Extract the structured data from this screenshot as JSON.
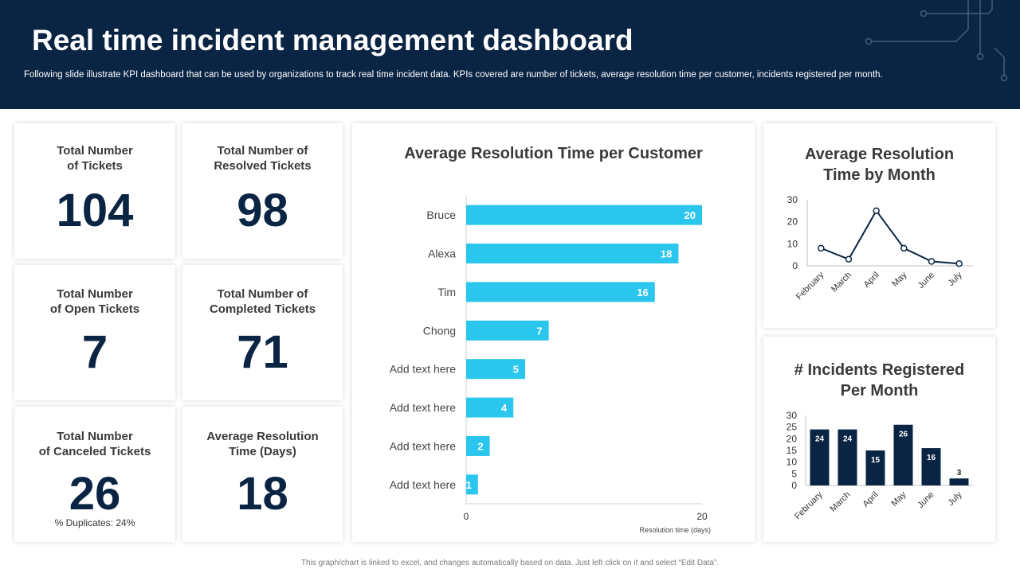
{
  "header": {
    "title": "Real time incident management dashboard",
    "subtitle": "Following slide illustrate KPI dashboard that can be used by organizations to track real time incident data. KPIs covered are number of tickets, average resolution time per customer, incidents registered per month."
  },
  "kpis": {
    "total_tickets": {
      "label": "Total Number\nof Tickets",
      "value": "104"
    },
    "resolved_tickets": {
      "label": "Total Number of\nResolved Tickets",
      "value": "98"
    },
    "open_tickets": {
      "label": "Total Number\nof Open Tickets",
      "value": "7"
    },
    "completed_tickets": {
      "label": "Total Number of\nCompleted Tickets",
      "value": "71"
    },
    "canceled_tickets": {
      "label": "Total Number\nof Canceled Tickets",
      "value": "26",
      "note": "% Duplicates:  24%"
    },
    "avg_resolution": {
      "label": "Average Resolution\nTime (Days)",
      "value": "18"
    }
  },
  "chart_data": [
    {
      "type": "bar",
      "orientation": "horizontal",
      "title": "Average  Resolution Time per Customer",
      "categories": [
        "Bruce",
        "Alexa",
        "Tim",
        "Chong",
        "Add text here",
        "Add text here",
        "Add text here",
        "Add text here"
      ],
      "values": [
        20,
        18,
        16,
        7,
        5,
        4,
        2,
        1
      ],
      "xlabel": "Resolution time (days)",
      "xlim": [
        0,
        20
      ],
      "xticks": [
        "0",
        "20"
      ],
      "color": "#2bc6ee"
    },
    {
      "type": "line",
      "title": "Average  Resolution\nTime by Month",
      "categories": [
        "February",
        "March",
        "April",
        "May",
        "June",
        "July"
      ],
      "values": [
        8,
        3,
        25,
        8,
        2,
        1
      ],
      "ylim": [
        0,
        30
      ],
      "yticks": [
        "0",
        "10",
        "20",
        "30"
      ],
      "color": "#0a2444"
    },
    {
      "type": "bar",
      "title": "# Incidents Registered\nPer Month",
      "categories": [
        "February",
        "March",
        "April",
        "May",
        "June",
        "July"
      ],
      "values": [
        24,
        24,
        15,
        26,
        16,
        3
      ],
      "ylim": [
        0,
        30
      ],
      "yticks": [
        "0",
        "5",
        "10",
        "15",
        "20",
        "25",
        "30"
      ],
      "color": "#0a2444"
    }
  ],
  "footer": "This graph/chart is linked to excel, and changes automatically based on data. Just left click on it and select “Edit Data”."
}
